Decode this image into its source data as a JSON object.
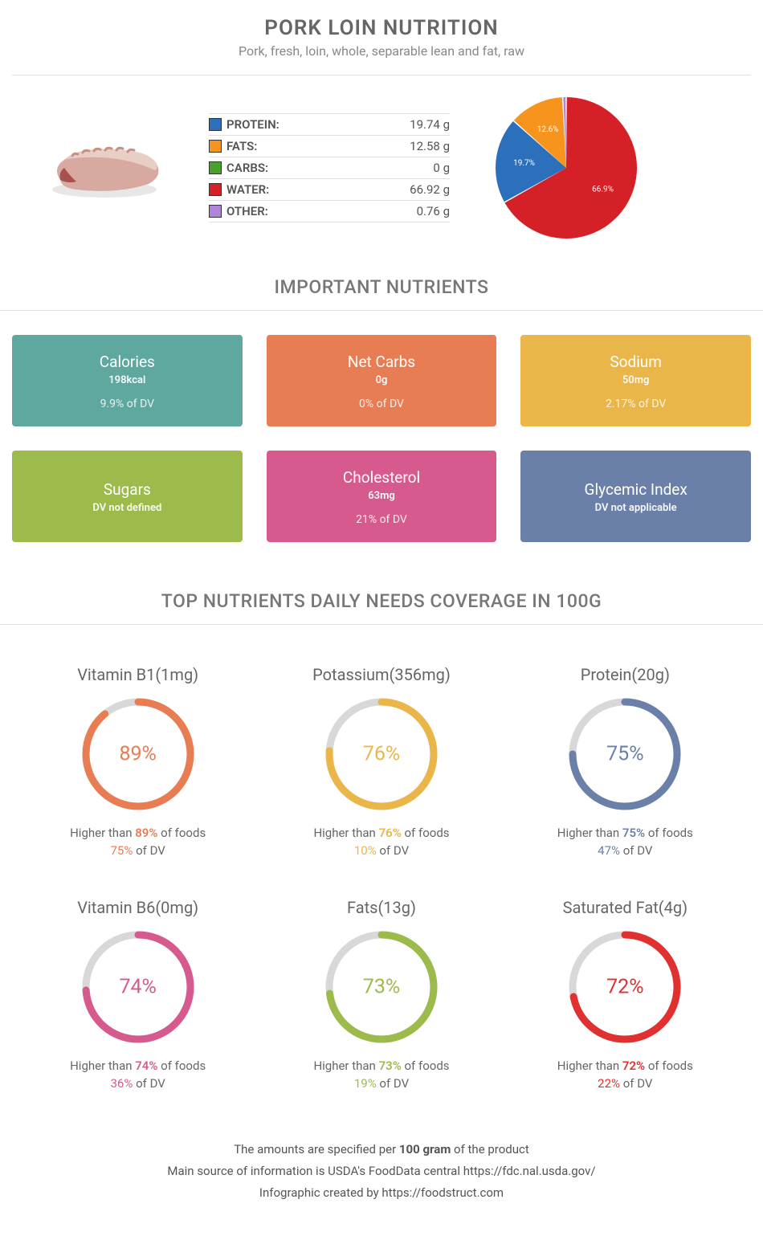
{
  "header": {
    "title": "PORK LOIN NUTRITION",
    "subtitle": "Pork, fresh, loin, whole, separable lean and fat, raw"
  },
  "macros": [
    {
      "label": "PROTEIN:",
      "value": "19.74 g",
      "color": "#2c6fbb"
    },
    {
      "label": "FATS:",
      "value": "12.58 g",
      "color": "#f7941d"
    },
    {
      "label": "CARBS:",
      "value": "0 g",
      "color": "#4aa02c"
    },
    {
      "label": "WATER:",
      "value": "66.92 g",
      "color": "#d62027"
    },
    {
      "label": "OTHER:",
      "value": "0.76 g",
      "color": "#b084d8"
    }
  ],
  "pie": {
    "bg": "#ffffff",
    "slices": [
      {
        "pct": 66.9,
        "color": "#d62027",
        "label": "66.9%"
      },
      {
        "pct": 19.7,
        "color": "#2c6fbb",
        "label": "19.7%"
      },
      {
        "pct": 12.6,
        "color": "#f7941d",
        "label": "12.6%"
      },
      {
        "pct": 0.8,
        "color": "#b084d8",
        "label": ""
      }
    ],
    "label_color": "#ffffff",
    "label_fontsize": 10
  },
  "section_nutrients": "IMPORTANT NUTRIENTS",
  "cards": [
    {
      "title": "Calories",
      "value": "198kcal",
      "dv": "9.9% of DV",
      "bg": "#5fa8a0"
    },
    {
      "title": "Net Carbs",
      "value": "0g",
      "dv": "0% of DV",
      "bg": "#e87c52"
    },
    {
      "title": "Sodium",
      "value": "50mg",
      "dv": "2.17% of DV",
      "bg": "#eab64a"
    },
    {
      "title": "Sugars",
      "value": "DV not defined",
      "dv": "",
      "bg": "#9cbb4a"
    },
    {
      "title": "Cholesterol",
      "value": "63mg",
      "dv": "21% of DV",
      "bg": "#d75a8e"
    },
    {
      "title": "Glycemic Index",
      "value": "DV not applicable",
      "dv": "",
      "bg": "#6a80a8"
    }
  ],
  "section_donuts": "TOP NUTRIENTS DAILY NEEDS COVERAGE IN 100G",
  "donuts": [
    {
      "title": "Vitamin B1(1mg)",
      "pct": 89,
      "color": "#e87c52",
      "higher": "89%",
      "dv": "75%"
    },
    {
      "title": "Potassium(356mg)",
      "pct": 76,
      "color": "#eab64a",
      "higher": "76%",
      "dv": "10%"
    },
    {
      "title": "Protein(20g)",
      "pct": 75,
      "color": "#6a80a8",
      "higher": "75%",
      "dv": "47%"
    },
    {
      "title": "Vitamin B6(0mg)",
      "pct": 74,
      "color": "#d75a8e",
      "higher": "74%",
      "dv": "36%"
    },
    {
      "title": "Fats(13g)",
      "pct": 73,
      "color": "#9cbb4a",
      "higher": "73%",
      "dv": "19%"
    },
    {
      "title": "Saturated Fat(4g)",
      "pct": 72,
      "color": "#e03030",
      "higher": "72%",
      "dv": "22%"
    }
  ],
  "donut_track_color": "#d8d8d8",
  "donut_stroke_width": 9,
  "donut_text_prefix": "Higher than ",
  "donut_text_suffix": " of foods",
  "donut_dv_suffix": " of DV",
  "footer": {
    "line1a": "The amounts are specified per ",
    "line1b": "100 gram",
    "line1c": " of the product",
    "line2": "Main source of information is USDA's FoodData central https://fdc.nal.usda.gov/",
    "line3": "Infographic created by https://foodstruct.com"
  }
}
